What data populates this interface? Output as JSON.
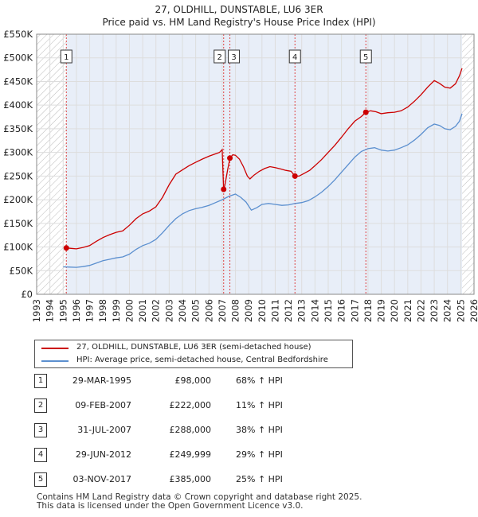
{
  "chart_data": {
    "type": "line",
    "title": "27, OLDHILL, DUNSTABLE, LU6 3ER",
    "subtitle": "Price paid vs. HM Land Registry's House Price Index (HPI)",
    "xlim": [
      1993,
      2026
    ],
    "ylim": [
      0,
      550000
    ],
    "x_ticks": [
      1993,
      1994,
      1995,
      1996,
      1997,
      1998,
      1999,
      2000,
      2001,
      2002,
      2003,
      2004,
      2005,
      2006,
      2007,
      2008,
      2009,
      2010,
      2011,
      2012,
      2013,
      2014,
      2015,
      2016,
      2017,
      2018,
      2019,
      2020,
      2021,
      2022,
      2023,
      2024,
      2025,
      2026
    ],
    "y_ticks": [
      {
        "value": 0,
        "label": "£0"
      },
      {
        "value": 50000,
        "label": "£50K"
      },
      {
        "value": 100000,
        "label": "£100K"
      },
      {
        "value": 150000,
        "label": "£150K"
      },
      {
        "value": 200000,
        "label": "£200K"
      },
      {
        "value": 250000,
        "label": "£250K"
      },
      {
        "value": 300000,
        "label": "£300K"
      },
      {
        "value": 350000,
        "label": "£350K"
      },
      {
        "value": 400000,
        "label": "£400K"
      },
      {
        "value": 450000,
        "label": "£450K"
      },
      {
        "value": 500000,
        "label": "£500K"
      },
      {
        "value": 550000,
        "label": "£550K"
      }
    ],
    "colors": {
      "property": "#cc0000",
      "hpi": "#5b8fcf",
      "shade": "#e8eef8",
      "marker_line": "#dd4444",
      "hatch": "#bbbbbb"
    },
    "ownership_start": 1995.24,
    "data_end": 2025.1,
    "series": [
      {
        "name": "27, OLDHILL, DUNSTABLE, LU6 3ER (semi-detached house)",
        "color": "#cc0000",
        "points": [
          [
            1995.24,
            98000
          ],
          [
            1995.6,
            97000
          ],
          [
            1996.0,
            96000
          ],
          [
            1996.5,
            99000
          ],
          [
            1997.0,
            103000
          ],
          [
            1997.5,
            112000
          ],
          [
            1998.0,
            120000
          ],
          [
            1998.5,
            126000
          ],
          [
            1999.0,
            131000
          ],
          [
            1999.5,
            134000
          ],
          [
            2000.0,
            146000
          ],
          [
            2000.5,
            160000
          ],
          [
            2001.0,
            170000
          ],
          [
            2001.5,
            176000
          ],
          [
            2002.0,
            185000
          ],
          [
            2002.5,
            205000
          ],
          [
            2003.0,
            232000
          ],
          [
            2003.5,
            254000
          ],
          [
            2004.0,
            263000
          ],
          [
            2004.5,
            272000
          ],
          [
            2005.0,
            279000
          ],
          [
            2005.5,
            286000
          ],
          [
            2006.0,
            292000
          ],
          [
            2006.5,
            297000
          ],
          [
            2006.8,
            300000
          ],
          [
            2007.0,
            306000
          ],
          [
            2007.11,
            222000
          ],
          [
            2007.2,
            230000
          ],
          [
            2007.4,
            262000
          ],
          [
            2007.58,
            288000
          ],
          [
            2007.8,
            295000
          ],
          [
            2008.0,
            294000
          ],
          [
            2008.3,
            286000
          ],
          [
            2008.6,
            270000
          ],
          [
            2008.9,
            250000
          ],
          [
            2009.1,
            244000
          ],
          [
            2009.4,
            252000
          ],
          [
            2009.8,
            260000
          ],
          [
            2010.2,
            266000
          ],
          [
            2010.6,
            270000
          ],
          [
            2011.0,
            268000
          ],
          [
            2011.4,
            265000
          ],
          [
            2011.8,
            262000
          ],
          [
            2012.2,
            260000
          ],
          [
            2012.49,
            249999
          ],
          [
            2012.8,
            250000
          ],
          [
            2013.2,
            256000
          ],
          [
            2013.6,
            262000
          ],
          [
            2014.0,
            272000
          ],
          [
            2014.5,
            285000
          ],
          [
            2015.0,
            300000
          ],
          [
            2015.5,
            315000
          ],
          [
            2016.0,
            332000
          ],
          [
            2016.5,
            350000
          ],
          [
            2017.0,
            366000
          ],
          [
            2017.5,
            376000
          ],
          [
            2017.84,
            385000
          ],
          [
            2018.2,
            388000
          ],
          [
            2018.6,
            386000
          ],
          [
            2019.0,
            382000
          ],
          [
            2019.5,
            384000
          ],
          [
            2020.0,
            385000
          ],
          [
            2020.5,
            388000
          ],
          [
            2021.0,
            396000
          ],
          [
            2021.5,
            408000
          ],
          [
            2022.0,
            422000
          ],
          [
            2022.5,
            438000
          ],
          [
            2023.0,
            452000
          ],
          [
            2023.4,
            446000
          ],
          [
            2023.8,
            438000
          ],
          [
            2024.2,
            436000
          ],
          [
            2024.6,
            445000
          ],
          [
            2024.9,
            462000
          ],
          [
            2025.1,
            478000
          ]
        ]
      },
      {
        "name": "HPI: Average price, semi-detached house, Central Bedfordshire",
        "color": "#5b8fcf",
        "points": [
          [
            1995.0,
            58000
          ],
          [
            1995.5,
            57500
          ],
          [
            1996.0,
            57000
          ],
          [
            1996.5,
            58500
          ],
          [
            1997.0,
            61000
          ],
          [
            1997.5,
            66000
          ],
          [
            1998.0,
            71000
          ],
          [
            1998.5,
            74000
          ],
          [
            1999.0,
            77000
          ],
          [
            1999.5,
            79000
          ],
          [
            2000.0,
            85000
          ],
          [
            2000.5,
            95000
          ],
          [
            2001.0,
            103000
          ],
          [
            2001.5,
            108000
          ],
          [
            2002.0,
            116000
          ],
          [
            2002.5,
            130000
          ],
          [
            2003.0,
            146000
          ],
          [
            2003.5,
            160000
          ],
          [
            2004.0,
            170000
          ],
          [
            2004.5,
            177000
          ],
          [
            2005.0,
            181000
          ],
          [
            2005.5,
            184000
          ],
          [
            2006.0,
            188000
          ],
          [
            2006.5,
            194000
          ],
          [
            2007.0,
            200000
          ],
          [
            2007.5,
            207000
          ],
          [
            2008.0,
            212000
          ],
          [
            2008.4,
            205000
          ],
          [
            2008.8,
            195000
          ],
          [
            2009.2,
            178000
          ],
          [
            2009.6,
            183000
          ],
          [
            2010.0,
            190000
          ],
          [
            2010.5,
            192000
          ],
          [
            2011.0,
            190000
          ],
          [
            2011.5,
            188000
          ],
          [
            2012.0,
            189000
          ],
          [
            2012.5,
            192000
          ],
          [
            2013.0,
            194000
          ],
          [
            2013.5,
            198000
          ],
          [
            2014.0,
            206000
          ],
          [
            2014.5,
            216000
          ],
          [
            2015.0,
            228000
          ],
          [
            2015.5,
            242000
          ],
          [
            2016.0,
            258000
          ],
          [
            2016.5,
            274000
          ],
          [
            2017.0,
            290000
          ],
          [
            2017.5,
            302000
          ],
          [
            2018.0,
            308000
          ],
          [
            2018.5,
            310000
          ],
          [
            2019.0,
            305000
          ],
          [
            2019.5,
            303000
          ],
          [
            2020.0,
            305000
          ],
          [
            2020.5,
            310000
          ],
          [
            2021.0,
            316000
          ],
          [
            2021.5,
            326000
          ],
          [
            2022.0,
            338000
          ],
          [
            2022.5,
            352000
          ],
          [
            2023.0,
            360000
          ],
          [
            2023.4,
            357000
          ],
          [
            2023.8,
            350000
          ],
          [
            2024.2,
            348000
          ],
          [
            2024.6,
            355000
          ],
          [
            2024.9,
            366000
          ],
          [
            2025.1,
            382000
          ]
        ]
      }
    ],
    "sales": [
      {
        "id": "1",
        "x": 1995.24,
        "y": 98000
      },
      {
        "id": "2",
        "x": 2007.11,
        "y": 222000
      },
      {
        "id": "3",
        "x": 2007.58,
        "y": 288000
      },
      {
        "id": "4",
        "x": 2012.49,
        "y": 249999
      },
      {
        "id": "5",
        "x": 2017.84,
        "y": 385000
      }
    ]
  },
  "legend": {
    "property_label": "27, OLDHILL, DUNSTABLE, LU6 3ER (semi-detached house)",
    "hpi_label": "HPI: Average price, semi-detached house, Central Bedfordshire"
  },
  "sales_table": [
    {
      "num": "1",
      "date": "29-MAR-1995",
      "price": "£98,000",
      "hpi": "68% ↑ HPI"
    },
    {
      "num": "2",
      "date": "09-FEB-2007",
      "price": "£222,000",
      "hpi": "11% ↑ HPI"
    },
    {
      "num": "3",
      "date": "31-JUL-2007",
      "price": "£288,000",
      "hpi": "38% ↑ HPI"
    },
    {
      "num": "4",
      "date": "29-JUN-2012",
      "price": "£249,999",
      "hpi": "29% ↑ HPI"
    },
    {
      "num": "5",
      "date": "03-NOV-2017",
      "price": "£385,000",
      "hpi": "25% ↑ HPI"
    }
  ],
  "footer": {
    "line1": "Contains HM Land Registry data © Crown copyright and database right 2025.",
    "line2": "This data is licensed under the Open Government Licence v3.0."
  }
}
